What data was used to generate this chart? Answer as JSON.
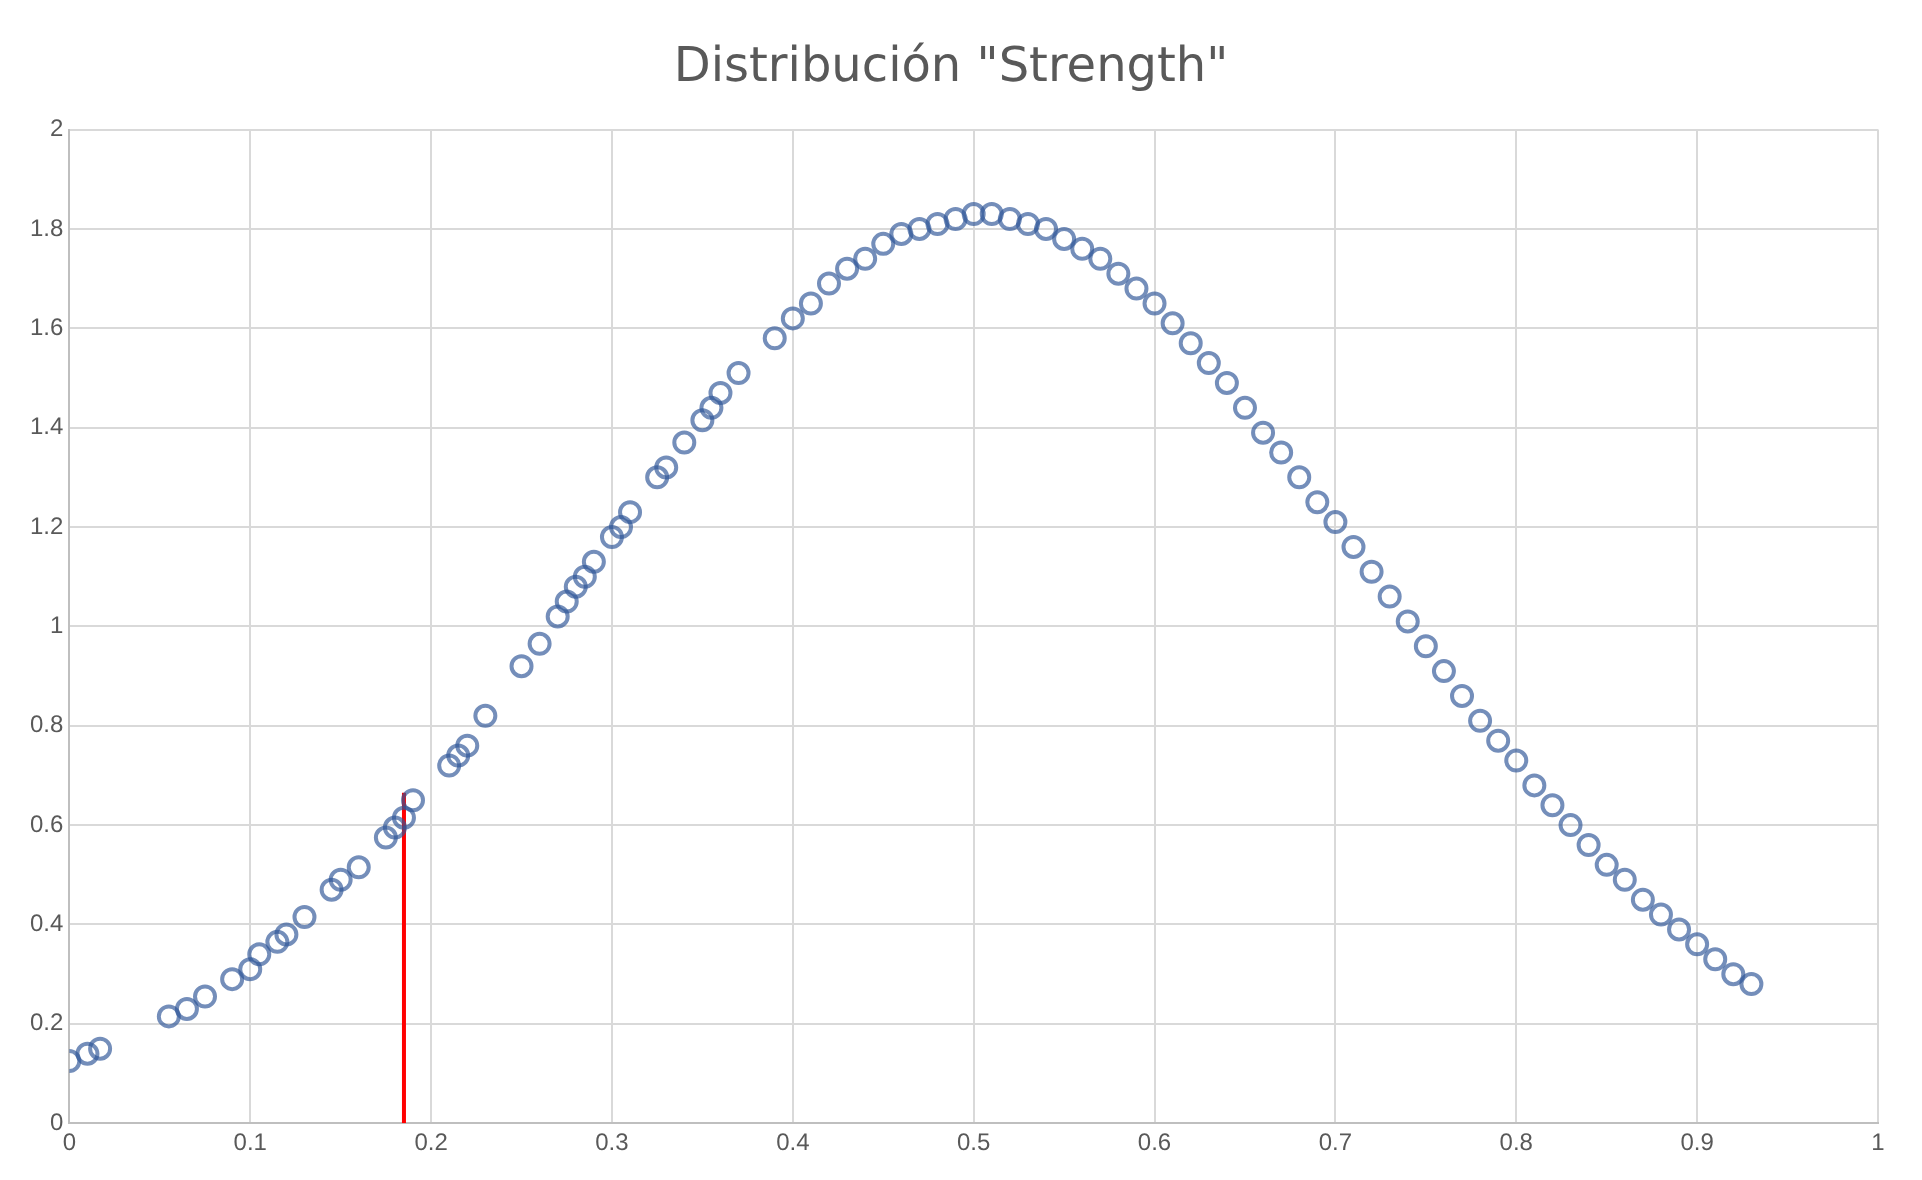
{
  "chart_data": {
    "type": "scatter",
    "title": "Distribución \"Strength\"",
    "xlim": [
      0,
      1
    ],
    "xticks": [
      0,
      0.1,
      0.2,
      0.3,
      0.4,
      0.5,
      0.6,
      0.7,
      0.8,
      0.9,
      1
    ],
    "ylim": [
      0,
      2
    ],
    "yticks": [
      0,
      0.2,
      0.4,
      0.6,
      0.8,
      1,
      1.2,
      1.4,
      1.6,
      1.8,
      2
    ],
    "grid": true,
    "legend": false,
    "marker": "circle",
    "series": [
      {
        "color": "#2f5597",
        "x": [
          0,
          0.01,
          0.017,
          0.055,
          0.065,
          0.075,
          0.09,
          0.1,
          0.105,
          0.115,
          0.12,
          0.13,
          0.145,
          0.15,
          0.16,
          0.175,
          0.18,
          0.185,
          0.19,
          0.21,
          0.215,
          0.22,
          0.23,
          0.25,
          0.26,
          0.27,
          0.275,
          0.28,
          0.285,
          0.29,
          0.3,
          0.305,
          0.31,
          0.325,
          0.33,
          0.34,
          0.35,
          0.355,
          0.36,
          0.37,
          0.39,
          0.4,
          0.41,
          0.42,
          0.43,
          0.44,
          0.45,
          0.46,
          0.47,
          0.48,
          0.49,
          0.5,
          0.51,
          0.52,
          0.53,
          0.54,
          0.55,
          0.56,
          0.57,
          0.58,
          0.59,
          0.6,
          0.61,
          0.62,
          0.63,
          0.64,
          0.65,
          0.66,
          0.67,
          0.68,
          0.69,
          0.7,
          0.71,
          0.72,
          0.73,
          0.74,
          0.75,
          0.76,
          0.77,
          0.78,
          0.79,
          0.8,
          0.81,
          0.82,
          0.83,
          0.84,
          0.85,
          0.86,
          0.87,
          0.88,
          0.89,
          0.9,
          0.91,
          0.92,
          0.93
        ],
        "values": [
          0.125,
          0.14,
          0.15,
          0.215,
          0.23,
          0.255,
          0.29,
          0.31,
          0.34,
          0.365,
          0.38,
          0.415,
          0.47,
          0.49,
          0.515,
          0.575,
          0.595,
          0.615,
          0.65,
          0.72,
          0.74,
          0.76,
          0.82,
          0.92,
          0.965,
          1.02,
          1.05,
          1.08,
          1.1,
          1.13,
          1.18,
          1.2,
          1.23,
          1.3,
          1.32,
          1.37,
          1.415,
          1.44,
          1.47,
          1.51,
          1.58,
          1.62,
          1.65,
          1.69,
          1.72,
          1.74,
          1.77,
          1.79,
          1.8,
          1.81,
          1.82,
          1.83,
          1.83,
          1.82,
          1.81,
          1.8,
          1.78,
          1.76,
          1.74,
          1.71,
          1.68,
          1.65,
          1.61,
          1.57,
          1.53,
          1.49,
          1.44,
          1.39,
          1.35,
          1.3,
          1.25,
          1.21,
          1.16,
          1.11,
          1.06,
          1.01,
          0.96,
          0.91,
          0.86,
          0.81,
          0.77,
          0.73,
          0.68,
          0.64,
          0.6,
          0.56,
          0.52,
          0.49,
          0.45,
          0.42,
          0.39,
          0.36,
          0.33,
          0.3,
          0.28
        ]
      },
      {
        "type": "line",
        "color": "#ff0000",
        "marker": "none",
        "x": [
          0.185,
          0.185
        ],
        "values": [
          0,
          0.665
        ]
      }
    ]
  }
}
